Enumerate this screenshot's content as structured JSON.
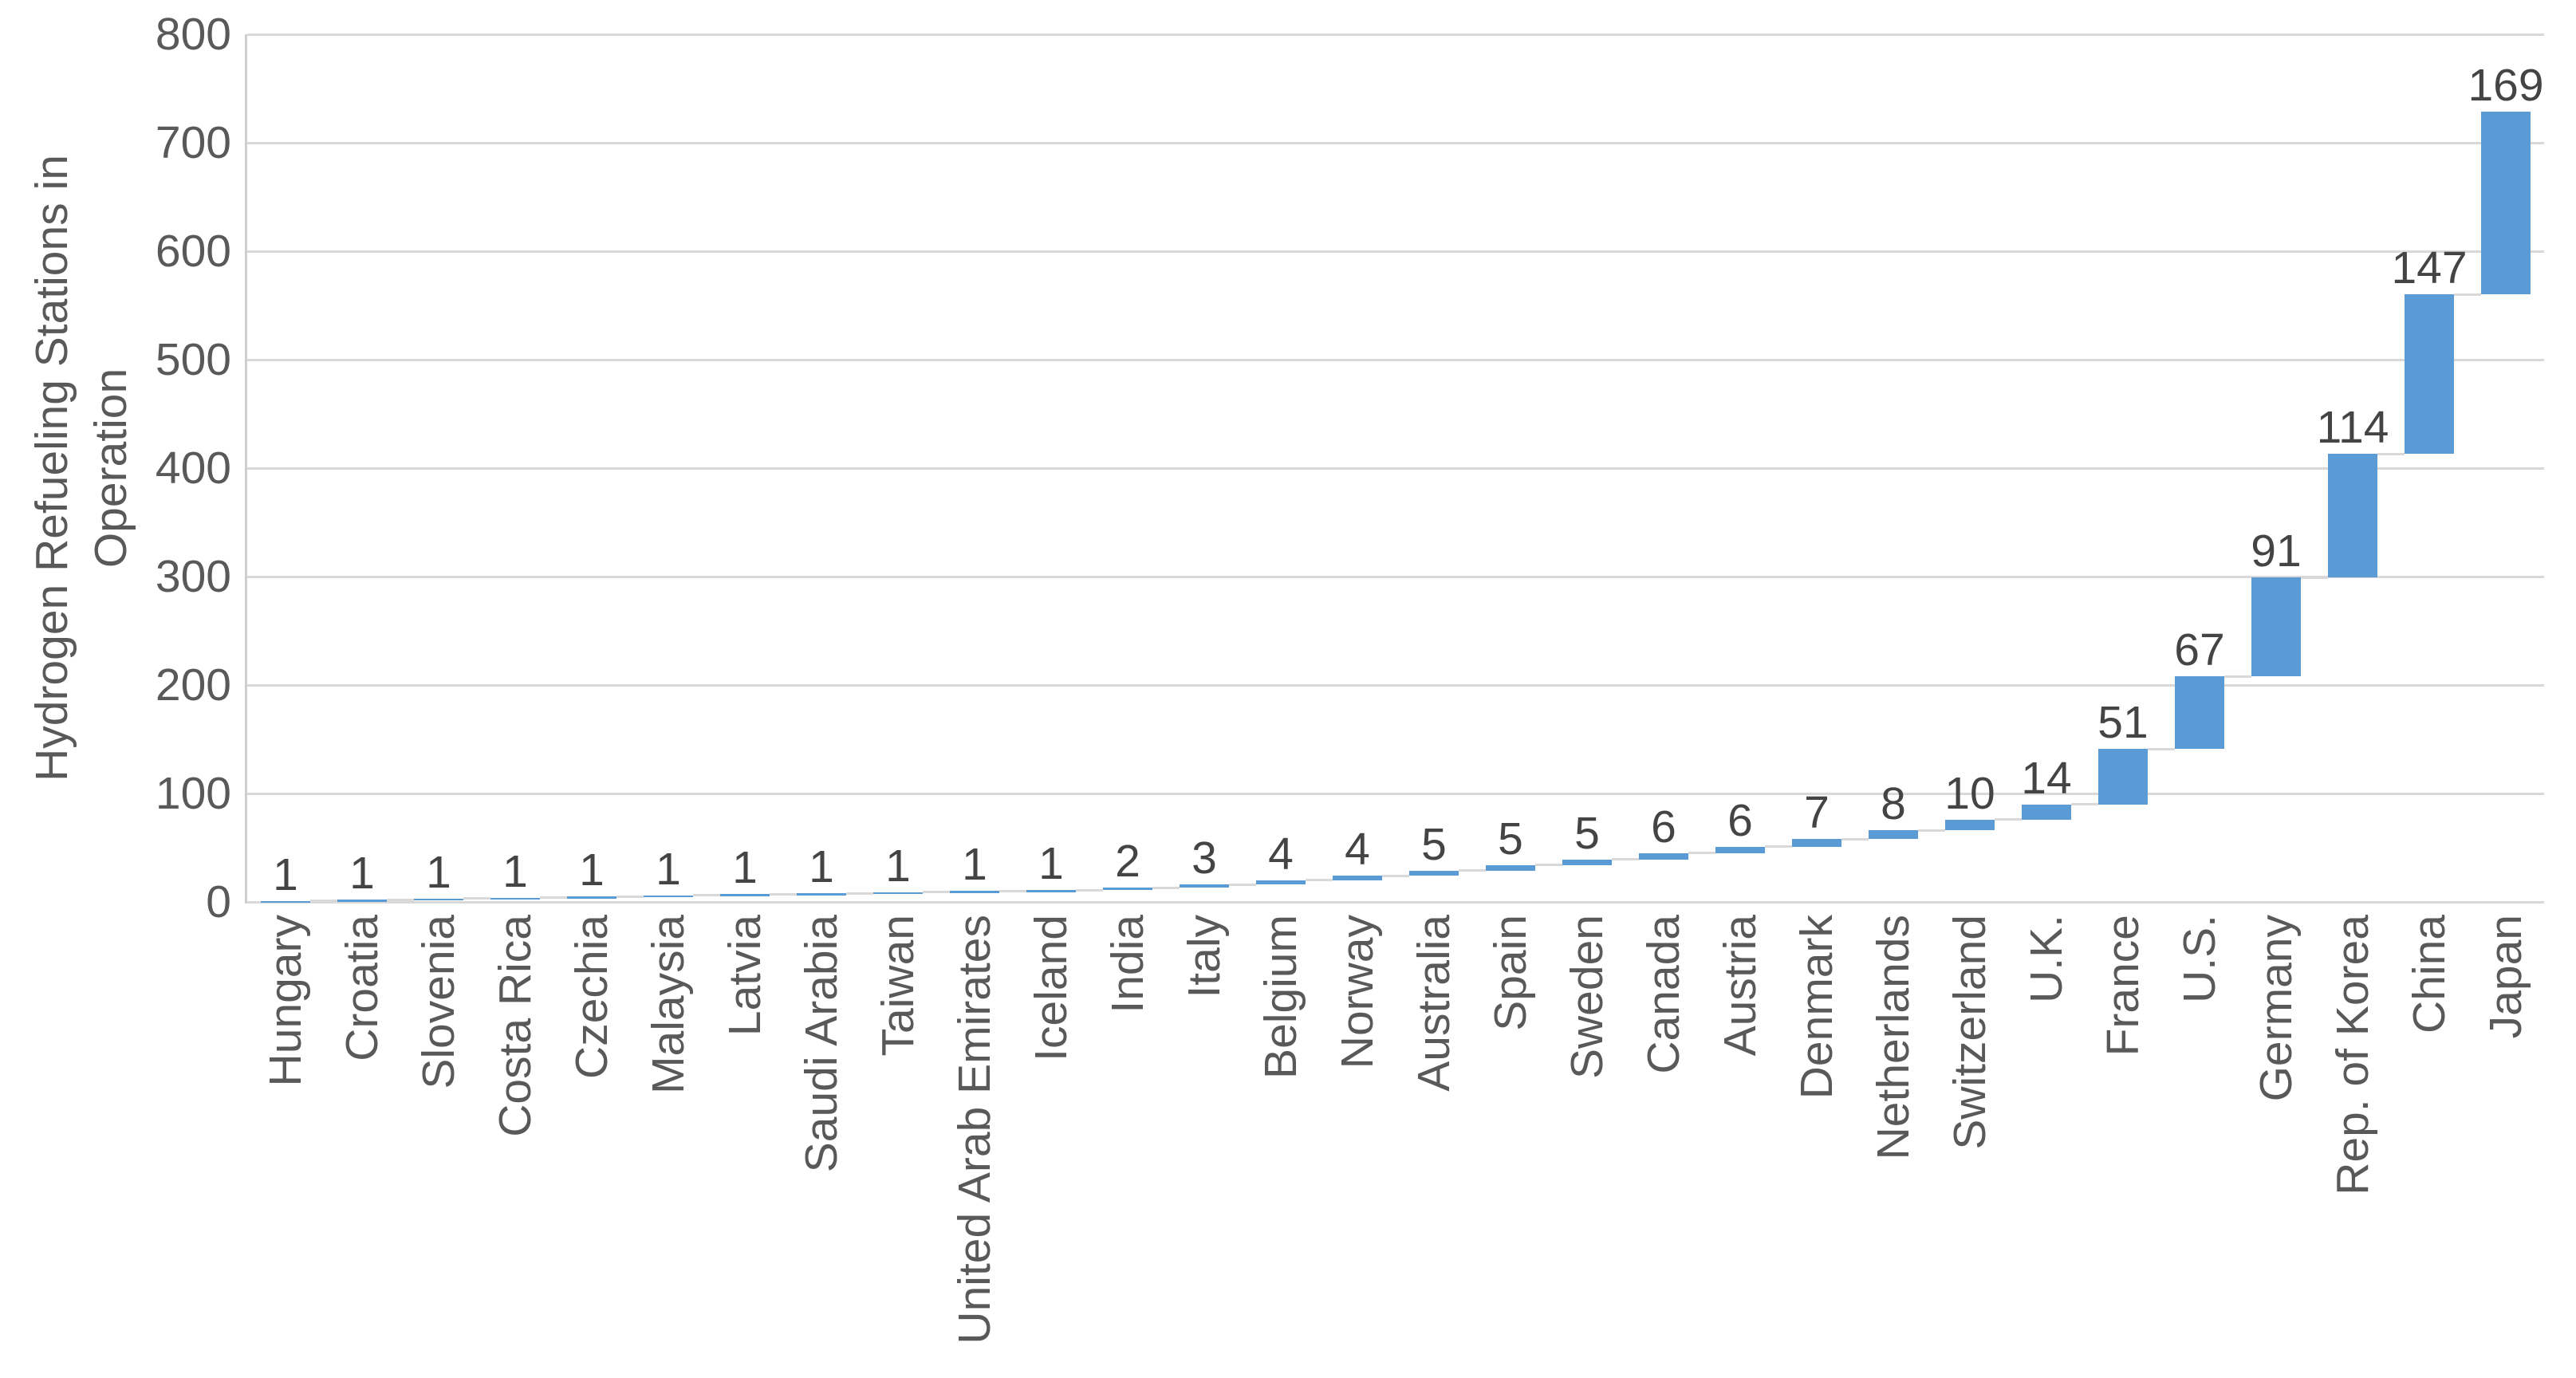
{
  "chart_data": {
    "type": "bar",
    "variant": "waterfall",
    "title": "",
    "xlabel": "",
    "ylabel": "Hydrogen Refueling Stations in Operation",
    "ylabel_lines": [
      "Hydrogen Refueling Stations in",
      "Operation"
    ],
    "ylim": [
      0,
      800
    ],
    "yticks": [
      0,
      100,
      200,
      300,
      400,
      500,
      600,
      700,
      800
    ],
    "grid": "horizontal",
    "legend": null,
    "categories": [
      "Hungary",
      "Croatia",
      "Slovenia",
      "Costa Rica",
      "Czechia",
      "Malaysia",
      "Latvia",
      "Saudi Arabia",
      "Taiwan",
      "United Arab Emirates",
      "Iceland",
      "India",
      "Italy",
      "Belgium",
      "Norway",
      "Australia",
      "Spain",
      "Sweden",
      "Canada",
      "Austria",
      "Denmark",
      "Netherlands",
      "Switzerland",
      "U.K.",
      "France",
      "U.S.",
      "Germany",
      "Rep. of Korea",
      "China",
      "Japan"
    ],
    "values": [
      1,
      1,
      1,
      1,
      1,
      1,
      1,
      1,
      1,
      1,
      1,
      2,
      3,
      4,
      4,
      5,
      5,
      5,
      6,
      6,
      7,
      8,
      10,
      14,
      51,
      67,
      91,
      114,
      147,
      169
    ],
    "cumulative_totals": [
      1,
      2,
      3,
      4,
      5,
      6,
      7,
      8,
      9,
      10,
      11,
      13,
      16,
      20,
      24,
      29,
      34,
      39,
      45,
      51,
      58,
      66,
      76,
      90,
      141,
      208,
      299,
      413,
      560,
      729
    ],
    "colors": {
      "bar": "#5B9BD5",
      "connector": "#D9D9D9",
      "gridline": "#D9D9D9",
      "axis_line": "#CFCFCF",
      "axis_text": "#595959",
      "data_label_text": "#444444"
    }
  }
}
